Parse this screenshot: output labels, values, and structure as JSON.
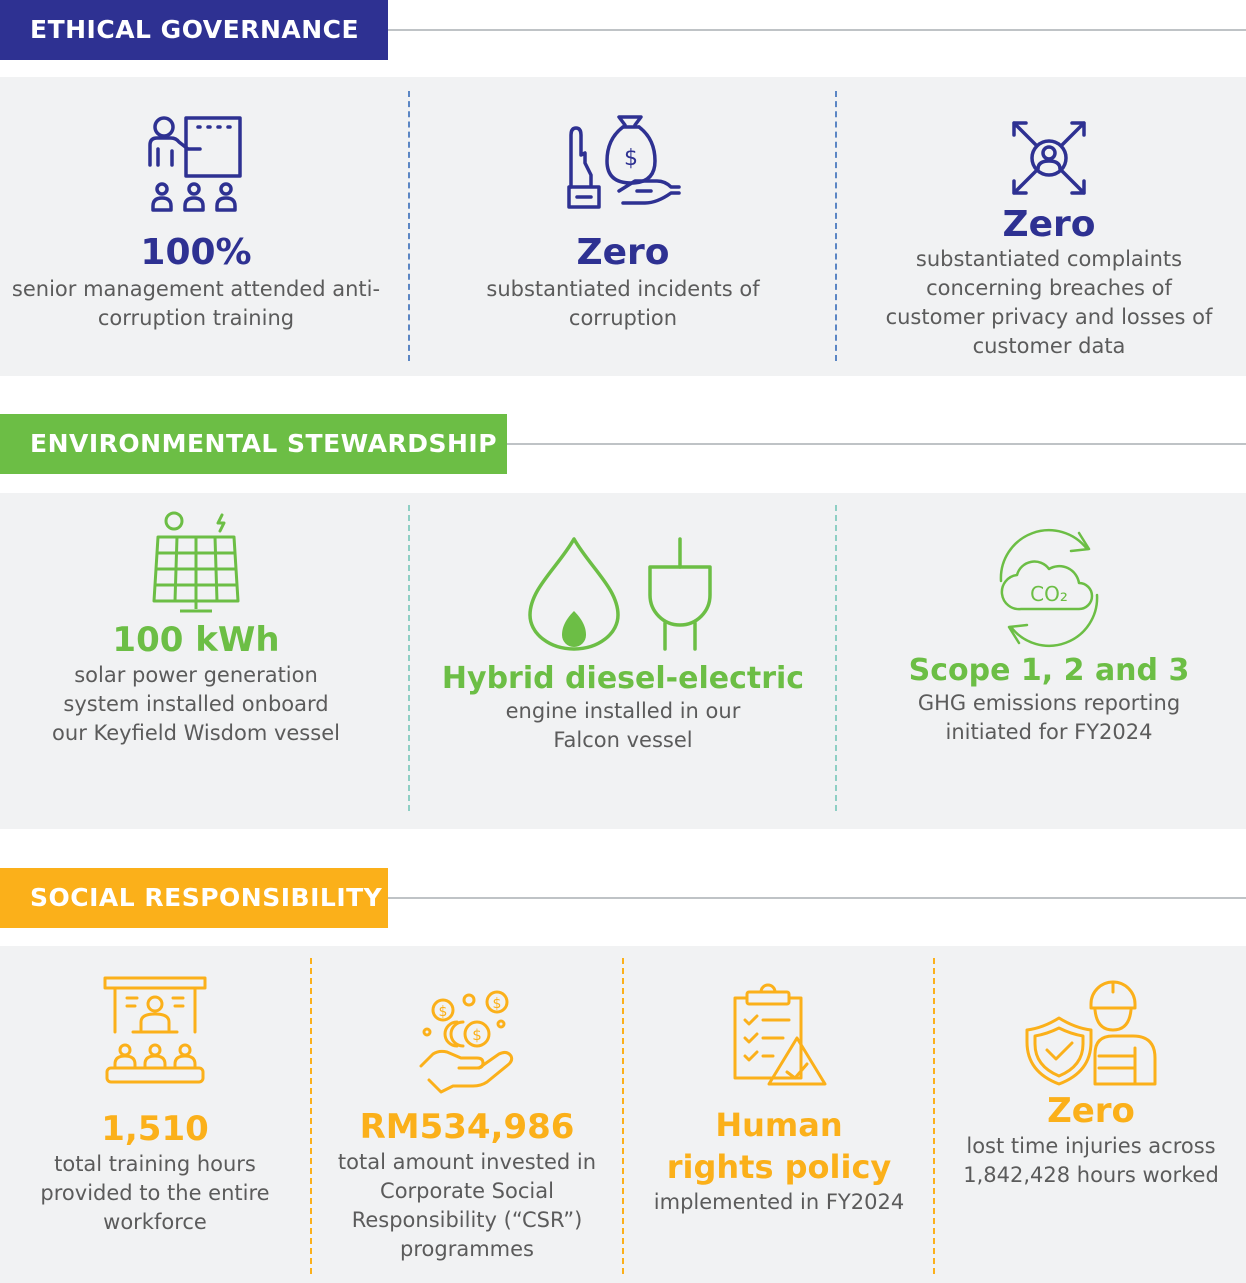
{
  "colors": {
    "governance": "#2e3192",
    "environment": "#6cbe45",
    "social": "#fbb01a",
    "panel_bg": "#f1f2f3",
    "rule": "#bfc3c6",
    "text": "#5b5b5b"
  },
  "governance": {
    "title": "ETHICAL GOVERNANCE",
    "items": [
      {
        "icon": "presentation-training-icon",
        "value": "100%",
        "description": "senior management attended anti-corruption training"
      },
      {
        "icon": "anti-bribery-hand-money-bag-icon",
        "value": "Zero",
        "description": "substantiated incidents of corruption"
      },
      {
        "icon": "customer-privacy-user-arrows-icon",
        "value": "Zero",
        "description": "substantiated complaints concerning breaches of customer privacy and losses of customer data"
      }
    ]
  },
  "environment": {
    "title": "ENVIRONMENTAL STEWARDSHIP",
    "items": [
      {
        "icon": "solar-panel-icon",
        "value": "100 kWh",
        "description": "solar power generation system installed onboard our Keyfield Wisdom vessel"
      },
      {
        "icon": "fuel-drop-and-plug-icon",
        "value": "Hybrid diesel-electric",
        "description": "engine installed in our Falcon vessel"
      },
      {
        "icon": "co2-cloud-cycle-icon",
        "icon_text": "CO₂",
        "value": "Scope 1, 2 and 3",
        "description": "GHG emissions reporting initiated for FY2024"
      }
    ]
  },
  "social": {
    "title": "SOCIAL RESPONSIBILITY",
    "items": [
      {
        "icon": "classroom-training-icon",
        "value": "1,510",
        "description": "total training hours provided to the entire workforce"
      },
      {
        "icon": "hand-with-coins-icon",
        "value": "RM534,986",
        "description": "total amount invested in Corporate Social Responsibility (“CSR”) programmes"
      },
      {
        "icon": "clipboard-warning-icon",
        "value": "Human rights policy",
        "description": "implemented in FY2024"
      },
      {
        "icon": "worker-safety-shield-icon",
        "value": "Zero",
        "description": "lost time injuries across 1,842,428  hours worked"
      }
    ]
  }
}
